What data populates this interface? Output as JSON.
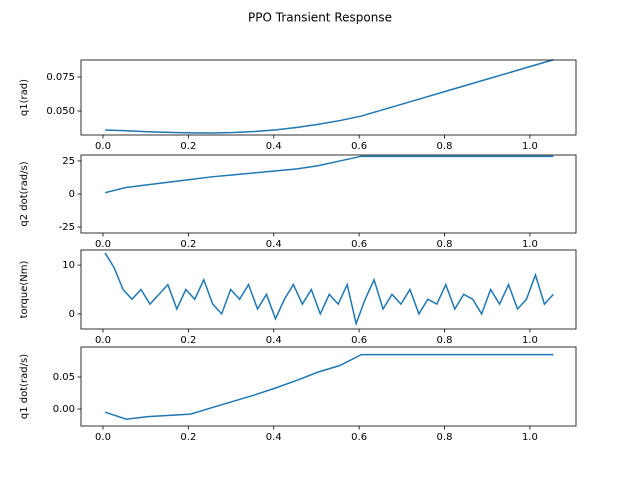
{
  "title": "PPO Transient Response",
  "chart_data": [
    {
      "type": "line",
      "ylabel": "q1(rad)",
      "color": "#1f77b4",
      "x": [
        0.005,
        0.055,
        0.105,
        0.155,
        0.205,
        0.255,
        0.305,
        0.355,
        0.405,
        0.455,
        0.505,
        0.555,
        0.605,
        0.655,
        0.705,
        0.755,
        0.805,
        0.855,
        0.905,
        0.955,
        1.005,
        1.055
      ],
      "values": [
        0.0361,
        0.0355,
        0.0348,
        0.0343,
        0.034,
        0.0339,
        0.0342,
        0.035,
        0.0362,
        0.038,
        0.0403,
        0.043,
        0.0463,
        0.0509,
        0.0555,
        0.0601,
        0.0647,
        0.0693,
        0.0739,
        0.0785,
        0.0831,
        0.0877
      ],
      "xlim": [
        -0.0515,
        1.108
      ],
      "xticks": [
        {
          "value": 0.0,
          "label": "0.0"
        },
        0.2,
        0.4,
        0.6,
        0.8,
        {
          "value": 1.0,
          "label": "1.0"
        }
      ],
      "ylim": [
        0.0324,
        0.0875
      ],
      "yticks": [
        {
          "value": 0.05,
          "label": "0.050"
        },
        {
          "value": 0.075,
          "label": "0.075"
        }
      ]
    },
    {
      "type": "line",
      "ylabel": "q2 dot(rad/s)",
      "color": "#1f77b4",
      "x": [
        0.005,
        0.055,
        0.105,
        0.155,
        0.205,
        0.255,
        0.305,
        0.355,
        0.405,
        0.455,
        0.505,
        0.555,
        0.605,
        0.655,
        0.705,
        0.755,
        0.805,
        0.855,
        0.905,
        0.955,
        1.005,
        1.055
      ],
      "values": [
        1,
        5,
        7,
        9,
        11,
        13,
        14.5,
        16,
        17.5,
        19,
        21.5,
        25,
        28.5,
        28.5,
        28.5,
        28.5,
        28.5,
        28.5,
        28.5,
        28.5,
        28.5,
        28.5
      ],
      "xlim": [
        -0.0515,
        1.108
      ],
      "xticks": [
        {
          "value": 0.0,
          "label": "0.0"
        },
        0.2,
        0.4,
        0.6,
        0.8,
        {
          "value": 1.0,
          "label": "1.0"
        }
      ],
      "ylim": [
        -29.5,
        29.5
      ],
      "yticks": [
        -25,
        0,
        25
      ]
    },
    {
      "type": "line",
      "ylabel": "torque(Nm)",
      "color": "#1f77b4",
      "x": [
        0.005,
        0.026,
        0.047,
        0.068,
        0.089,
        0.11,
        0.131,
        0.152,
        0.173,
        0.194,
        0.215,
        0.236,
        0.257,
        0.278,
        0.299,
        0.32,
        0.341,
        0.362,
        0.383,
        0.404,
        0.425,
        0.446,
        0.467,
        0.488,
        0.509,
        0.53,
        0.551,
        0.572,
        0.593,
        0.614,
        0.635,
        0.656,
        0.677,
        0.698,
        0.719,
        0.74,
        0.761,
        0.782,
        0.803,
        0.824,
        0.845,
        0.866,
        0.887,
        0.908,
        0.929,
        0.95,
        0.971,
        0.992,
        1.013,
        1.034,
        1.055
      ],
      "values": [
        12.5,
        9.5,
        5,
        3,
        5,
        2,
        4,
        6,
        1,
        5,
        3,
        7,
        2,
        0,
        5,
        3,
        6,
        1,
        4,
        -1,
        3,
        6,
        2,
        5,
        0,
        4,
        2,
        6,
        -2,
        3,
        7,
        1,
        4,
        2,
        5,
        0,
        3,
        2,
        6,
        1,
        4,
        3,
        0,
        5,
        2,
        6,
        1,
        3,
        8,
        2,
        4
      ],
      "xlim": [
        -0.0515,
        1.108
      ],
      "xticks": [
        {
          "value": 0.0,
          "label": "0.0"
        },
        0.2,
        0.4,
        0.6,
        0.8,
        {
          "value": 1.0,
          "label": "1.0"
        }
      ],
      "ylim": [
        -3.1,
        13.1
      ],
      "yticks": [
        0,
        10
      ]
    },
    {
      "type": "line",
      "ylabel": "q1 dot(rad/s)",
      "color": "#1f77b4",
      "x": [
        0.005,
        0.055,
        0.105,
        0.155,
        0.205,
        0.255,
        0.305,
        0.355,
        0.405,
        0.455,
        0.505,
        0.555,
        0.605,
        0.655,
        0.705,
        0.755,
        0.805,
        0.855,
        0.905,
        0.955,
        1.005,
        1.055
      ],
      "values": [
        -0.005,
        -0.016,
        -0.012,
        -0.01,
        -0.008,
        0.002,
        0.012,
        0.022,
        0.033,
        0.045,
        0.058,
        0.068,
        0.085,
        0.085,
        0.085,
        0.085,
        0.085,
        0.085,
        0.085,
        0.085,
        0.085,
        0.085
      ],
      "xlim": [
        -0.0515,
        1.108
      ],
      "xticks": [
        {
          "value": 0.0,
          "label": "0.0"
        },
        0.2,
        0.4,
        0.6,
        0.8,
        {
          "value": 1.0,
          "label": "1.0"
        }
      ],
      "ylim": [
        -0.0266,
        0.0969
      ],
      "yticks": [
        {
          "value": 0.0,
          "label": "0.00"
        },
        {
          "value": 0.05,
          "label": "0.05"
        }
      ]
    }
  ]
}
